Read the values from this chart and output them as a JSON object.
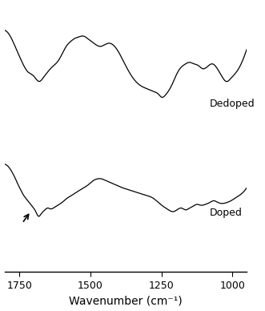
{
  "xlabel": "Wavenumber (cm⁻¹)",
  "xticks": [
    1750,
    1500,
    1250,
    1000
  ],
  "xtick_labels": [
    "1750",
    "1500",
    "1250",
    "1000"
  ],
  "label_dedoped": "Dedoped",
  "label_doped": "Doped",
  "figsize": [
    3.31,
    3.88
  ],
  "dpi": 100,
  "dedoped_keypoints_x": [
    1800,
    1775,
    1760,
    1740,
    1720,
    1700,
    1680,
    1665,
    1650,
    1635,
    1615,
    1600,
    1585,
    1570,
    1555,
    1540,
    1525,
    1510,
    1495,
    1480,
    1465,
    1450,
    1435,
    1410,
    1390,
    1370,
    1345,
    1320,
    1295,
    1275,
    1260,
    1248,
    1238,
    1225,
    1210,
    1195,
    1180,
    1165,
    1150,
    1135,
    1120,
    1105,
    1090,
    1070,
    1055,
    1038,
    1022,
    1005,
    990,
    975,
    960,
    950
  ],
  "dedoped_keypoints_y": [
    0.92,
    0.8,
    0.68,
    0.52,
    0.4,
    0.35,
    0.28,
    0.33,
    0.4,
    0.46,
    0.53,
    0.62,
    0.72,
    0.78,
    0.82,
    0.84,
    0.85,
    0.82,
    0.78,
    0.74,
    0.72,
    0.74,
    0.76,
    0.7,
    0.58,
    0.44,
    0.3,
    0.22,
    0.18,
    0.15,
    0.12,
    0.08,
    0.1,
    0.16,
    0.26,
    0.38,
    0.46,
    0.5,
    0.52,
    0.5,
    0.48,
    0.44,
    0.46,
    0.5,
    0.45,
    0.35,
    0.28,
    0.32,
    0.38,
    0.46,
    0.58,
    0.68
  ],
  "doped_keypoints_x": [
    1800,
    1785,
    1773,
    1762,
    1752,
    1742,
    1735,
    1728,
    1720,
    1710,
    1700,
    1692,
    1683,
    1672,
    1660,
    1650,
    1640,
    1630,
    1620,
    1610,
    1600,
    1585,
    1565,
    1545,
    1525,
    1505,
    1490,
    1475,
    1460,
    1445,
    1430,
    1415,
    1400,
    1385,
    1365,
    1345,
    1325,
    1305,
    1280,
    1260,
    1240,
    1225,
    1210,
    1195,
    1180,
    1165,
    1150,
    1138,
    1125,
    1110,
    1095,
    1080,
    1065,
    1050,
    1035,
    1020,
    1005,
    990,
    975,
    960,
    950
  ],
  "doped_keypoints_y": [
    0.62,
    0.58,
    0.52,
    0.45,
    0.38,
    0.32,
    0.28,
    0.25,
    0.22,
    0.18,
    0.14,
    0.1,
    0.05,
    0.08,
    0.12,
    0.14,
    0.13,
    0.14,
    0.16,
    0.18,
    0.2,
    0.24,
    0.28,
    0.32,
    0.36,
    0.4,
    0.44,
    0.46,
    0.46,
    0.44,
    0.42,
    0.4,
    0.38,
    0.36,
    0.34,
    0.32,
    0.3,
    0.28,
    0.25,
    0.2,
    0.15,
    0.12,
    0.1,
    0.12,
    0.14,
    0.12,
    0.14,
    0.16,
    0.18,
    0.17,
    0.18,
    0.2,
    0.22,
    0.2,
    0.19,
    0.2,
    0.22,
    0.25,
    0.28,
    0.32,
    0.36
  ]
}
